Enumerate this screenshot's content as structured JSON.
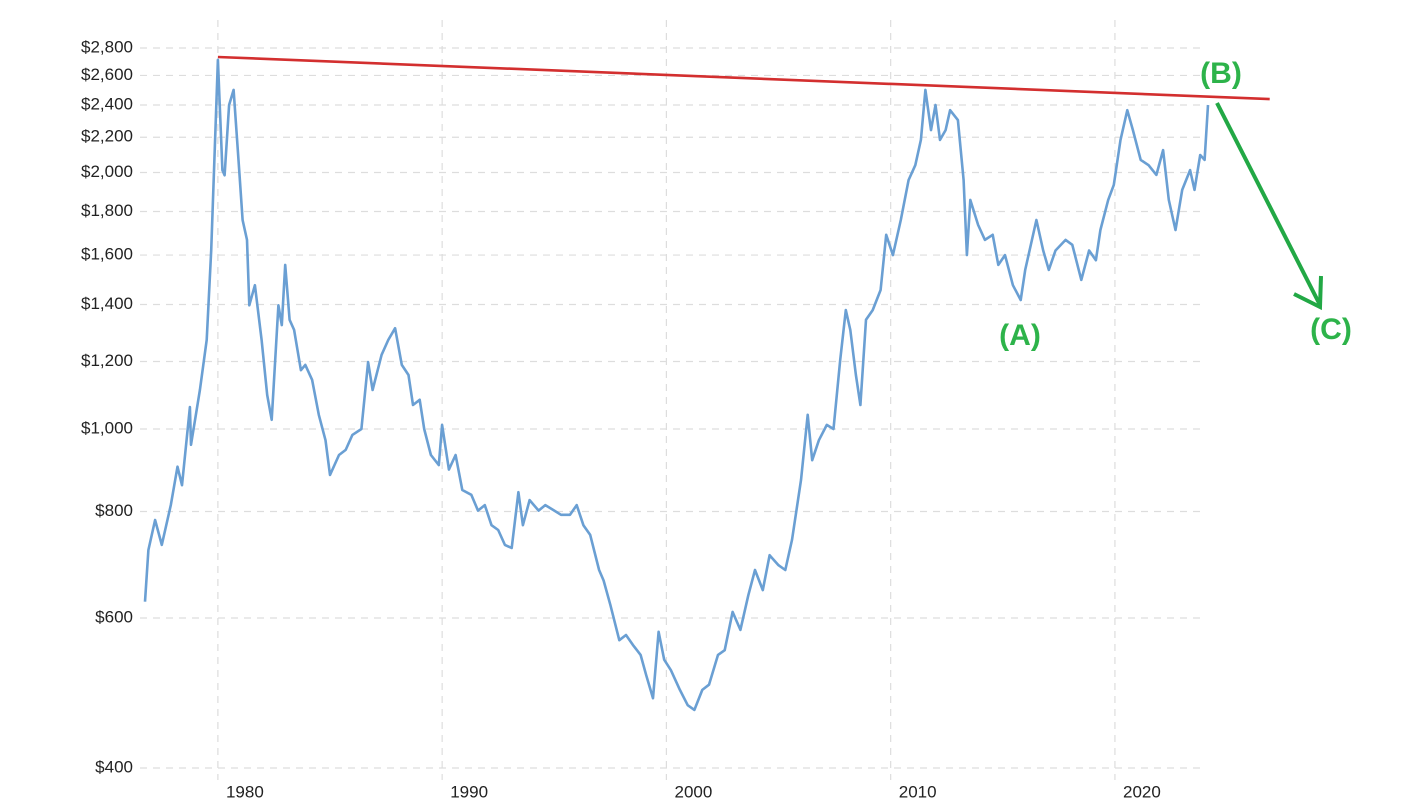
{
  "chart_data": {
    "type": "line",
    "log_scale": true,
    "grid": true,
    "x": [
      1976.75,
      1976.9,
      1977.2,
      1977.5,
      1977.9,
      1978.2,
      1978.4,
      1978.75,
      1978.8,
      1979.2,
      1979.5,
      1979.7,
      1980.0,
      1980.2,
      1980.3,
      1980.5,
      1980.7,
      1980.95,
      1981.1,
      1981.3,
      1981.4,
      1981.65,
      1981.95,
      1982.2,
      1982.4,
      1982.7,
      1982.85,
      1983.0,
      1983.2,
      1983.4,
      1983.7,
      1983.9,
      1984.2,
      1984.5,
      1984.8,
      1985.0,
      1985.4,
      1985.7,
      1986.0,
      1986.4,
      1986.7,
      1986.9,
      1987.3,
      1987.6,
      1987.9,
      1988.2,
      1988.5,
      1988.7,
      1989.0,
      1989.2,
      1989.5,
      1989.85,
      1990.0,
      1990.3,
      1990.6,
      1990.9,
      1991.3,
      1991.6,
      1991.9,
      1992.2,
      1992.5,
      1992.8,
      1993.1,
      1993.4,
      1993.6,
      1993.9,
      1994.3,
      1994.6,
      1995.0,
      1995.3,
      1995.7,
      1996.0,
      1996.3,
      1996.6,
      1997.0,
      1997.2,
      1997.5,
      1997.9,
      1998.2,
      1998.5,
      1998.85,
      1999.1,
      1999.4,
      1999.65,
      1999.9,
      2000.2,
      2000.6,
      2000.95,
      2001.25,
      2001.6,
      2001.9,
      2002.3,
      2002.6,
      2002.95,
      2003.3,
      2003.65,
      2003.95,
      2004.3,
      2004.6,
      2005.0,
      2005.3,
      2005.6,
      2006.0,
      2006.3,
      2006.5,
      2006.8,
      2007.15,
      2007.45,
      2007.75,
      2008.0,
      2008.2,
      2008.45,
      2008.65,
      2008.9,
      2009.2,
      2009.55,
      2009.8,
      2010.1,
      2010.45,
      2010.8,
      2011.1,
      2011.35,
      2011.55,
      2011.8,
      2012.0,
      2012.2,
      2012.45,
      2012.65,
      2013.0,
      2013.25,
      2013.4,
      2013.55,
      2013.9,
      2014.2,
      2014.55,
      2014.8,
      2015.1,
      2015.45,
      2015.8,
      2016.0,
      2016.5,
      2016.8,
      2017.05,
      2017.35,
      2017.8,
      2018.1,
      2018.5,
      2018.85,
      2019.15,
      2019.35,
      2019.7,
      2019.95,
      2020.25,
      2020.55,
      2020.8,
      2021.15,
      2021.5,
      2021.85,
      2022.15,
      2022.4,
      2022.7,
      2023.0,
      2023.35,
      2023.55,
      2023.8,
      2024.0,
      2024.15
    ],
    "series": [
      {
        "color": "#6a9fd3",
        "values": [
          627,
          721,
          782,
          731,
          814,
          903,
          859,
          1061,
          958,
          1111,
          1272,
          1620,
          2712,
          2013,
          1985,
          2400,
          2500,
          2013,
          1759,
          1667,
          1397,
          1475,
          1272,
          1096,
          1025,
          1397,
          1324,
          1558,
          1343,
          1307,
          1172,
          1189,
          1142,
          1039,
          970,
          883,
          932,
          945,
          984,
          1000,
          1198,
          1111,
          1222,
          1272,
          1313,
          1189,
          1157,
          1067,
          1082,
          1000,
          932,
          907,
          1011,
          896,
          932,
          848,
          837,
          802,
          814,
          771,
          761,
          731,
          725,
          843,
          771,
          825,
          802,
          814,
          802,
          793,
          793,
          814,
          771,
          751,
          683,
          664,
          622,
          565,
          573,
          558,
          543,
          514,
          483,
          578,
          536,
          521,
          494,
          474,
          468,
          494,
          501,
          543,
          550,
          610,
          581,
          638,
          683,
          647,
          711,
          692,
          683,
          741,
          871,
          1039,
          919,
          970,
          1011,
          1000,
          1205,
          1379,
          1307,
          1157,
          1067,
          1343,
          1379,
          1456,
          1690,
          1600,
          1759,
          1960,
          2040,
          2184,
          2500,
          2243,
          2400,
          2184,
          2243,
          2367,
          2304,
          1960,
          1600,
          1857,
          1736,
          1667,
          1690,
          1558,
          1600,
          1475,
          1417,
          1537,
          1759,
          1620,
          1537,
          1620,
          1667,
          1645,
          1496,
          1620,
          1578,
          1712,
          1857,
          1934,
          2184,
          2367,
          2243,
          2069,
          2040,
          1987,
          2125,
          1857,
          1712,
          1908,
          2013,
          1908,
          2097,
          2069,
          2400
        ]
      }
    ],
    "trend_line": {
      "color": "#d32f2f",
      "x": [
        1980,
        2026.9
      ],
      "values": [
        2733,
        2439
      ]
    },
    "annotations": [
      {
        "text": "(A)"
      },
      {
        "text": "(B)"
      },
      {
        "text": "(C)"
      }
    ],
    "xlim": [
      1976.75,
      2024.15
    ],
    "xticks": [
      1980,
      1990,
      2000,
      2010,
      2020
    ],
    "ylim": [
      400,
      2800
    ],
    "yticks": [
      {
        "value": 400,
        "label": "$400"
      },
      {
        "value": 600,
        "label": "$600"
      },
      {
        "value": 800,
        "label": "$800"
      },
      {
        "value": 1000,
        "label": "$1,000"
      },
      {
        "value": 1200,
        "label": "$1,200"
      },
      {
        "value": 1400,
        "label": "$1,400"
      },
      {
        "value": 1600,
        "label": "$1,600"
      },
      {
        "value": 1800,
        "label": "$1,800"
      },
      {
        "value": 2000,
        "label": "$2,000"
      },
      {
        "value": 2200,
        "label": "$2,200"
      },
      {
        "value": 2400,
        "label": "$2,400"
      },
      {
        "value": 2600,
        "label": "$2,600"
      },
      {
        "value": 2800,
        "label": "$2,800"
      }
    ]
  }
}
